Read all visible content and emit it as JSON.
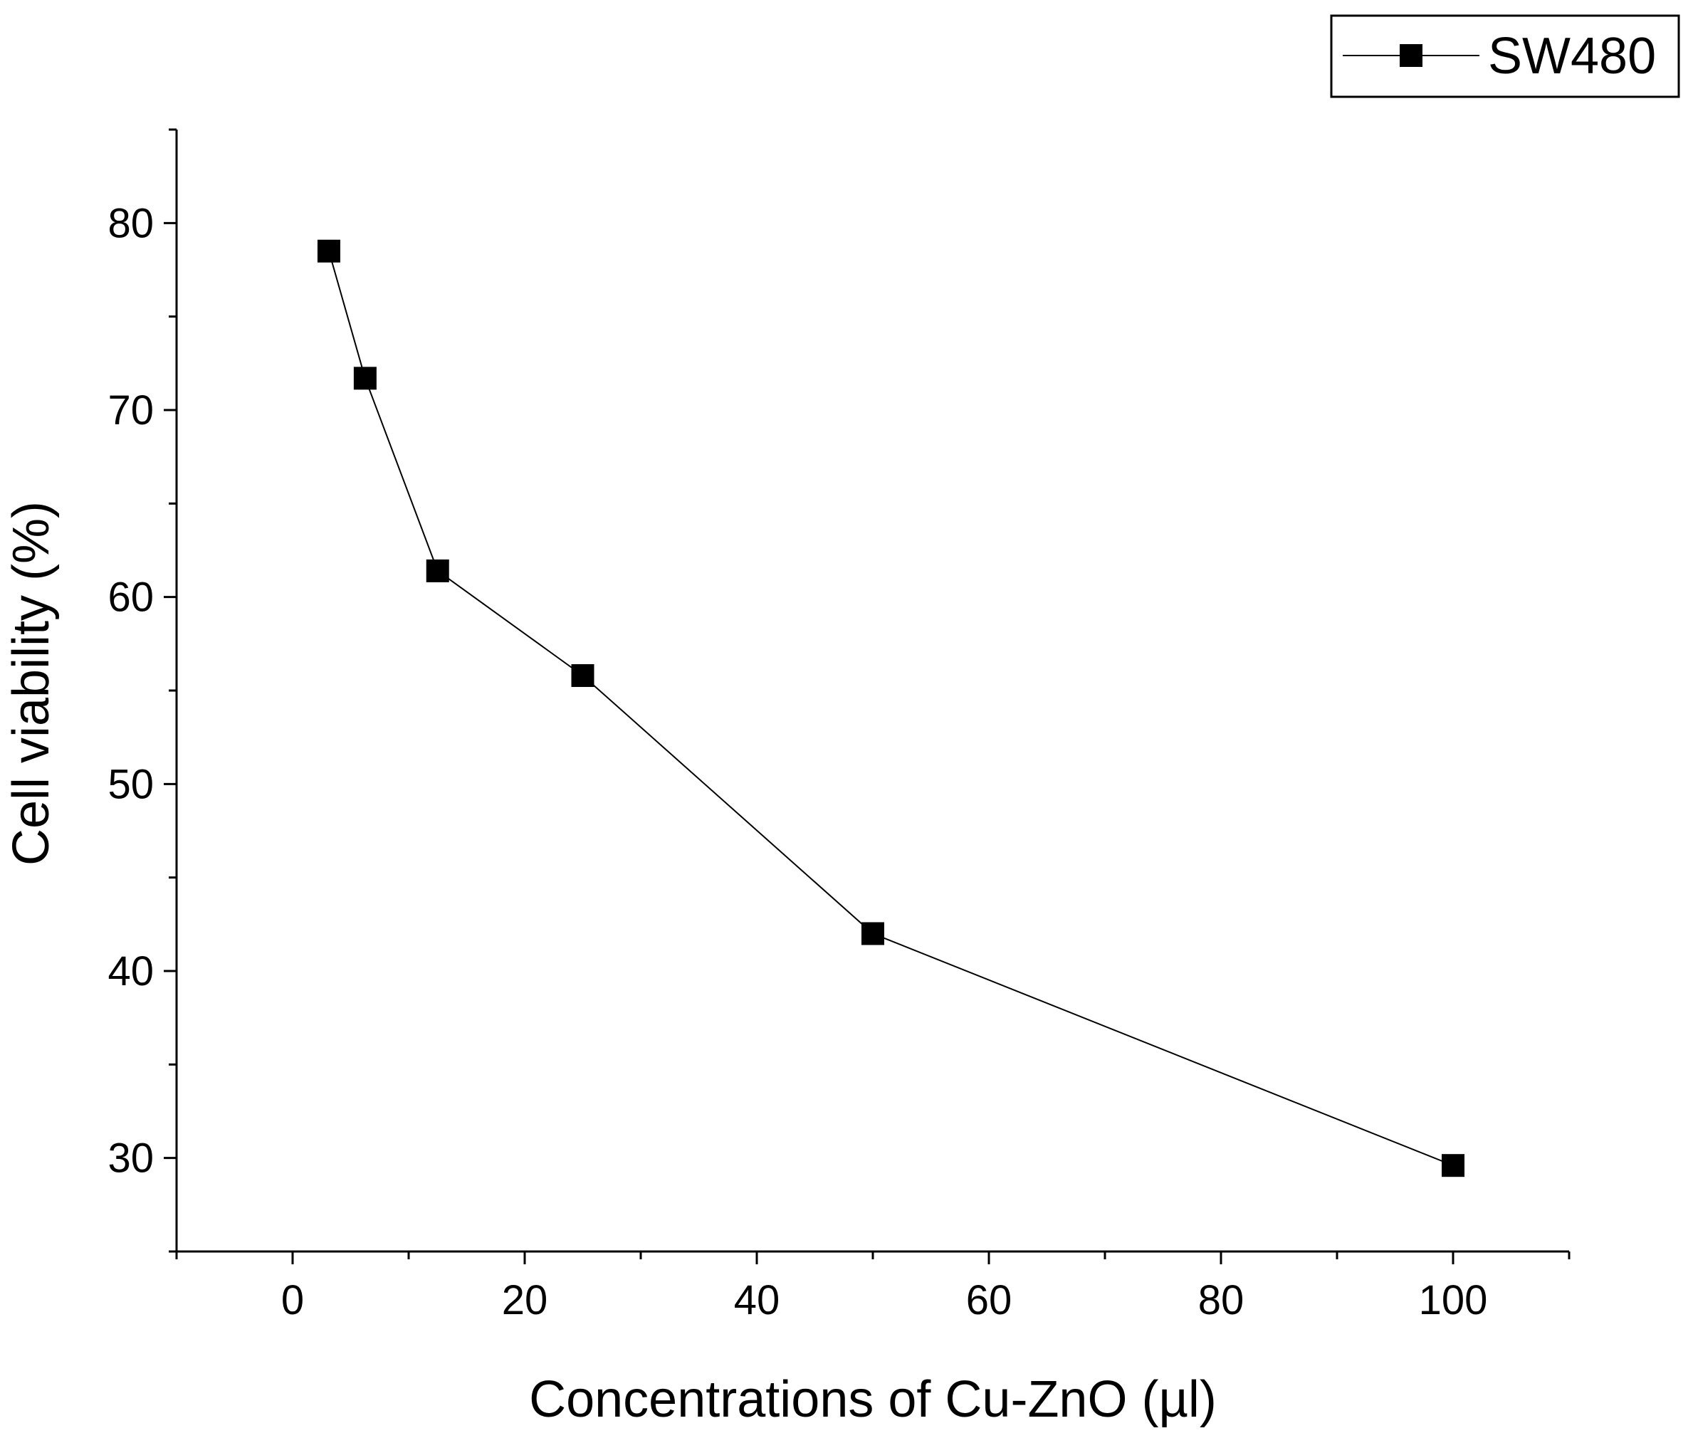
{
  "chart_data": {
    "type": "line",
    "title": "",
    "xlabel": "Concentrations of Cu-ZnO (µl)",
    "ylabel": "Cell viability (%)",
    "xlim": [
      -10,
      110
    ],
    "ylim": [
      25,
      85
    ],
    "xticks": [
      "0",
      "20",
      "40",
      "60",
      "80",
      "100"
    ],
    "yticks": [
      "30",
      "40",
      "50",
      "60",
      "70",
      "80"
    ],
    "grid": false,
    "legend_position": "top-right",
    "series": [
      {
        "name": "SW480",
        "marker": "square",
        "color": "#000000",
        "x": [
          3.125,
          6.25,
          12.5,
          25,
          50,
          100
        ],
        "y": [
          78.5,
          71.7,
          61.4,
          55.8,
          42.0,
          29.6
        ]
      }
    ]
  }
}
